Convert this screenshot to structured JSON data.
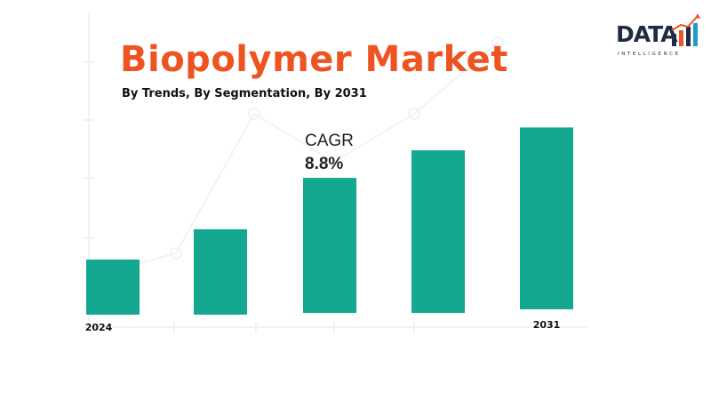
{
  "header": {
    "title": "Biopolymer Market",
    "subtitle": "By Trends, By Segmentation, By 2031"
  },
  "logo": {
    "word": "DATA",
    "tagline": "INTELLIGENCE",
    "colors": [
      "#1f2a44",
      "#ee5422",
      "#1f9ac9"
    ]
  },
  "cagr": {
    "label": "CAGR",
    "value": "8.8%"
  },
  "colors": {
    "title": "#ee5422",
    "bar": "#13a88f",
    "text": "#111111"
  },
  "chart_data": {
    "type": "bar",
    "title": "Biopolymer Market",
    "categories": [
      "2024",
      "",
      "",
      "",
      "2031"
    ],
    "values": [
      1.0,
      1.55,
      2.45,
      2.95,
      3.3
    ],
    "y_axis": "unlabeled",
    "grid": false,
    "legend": "none"
  }
}
